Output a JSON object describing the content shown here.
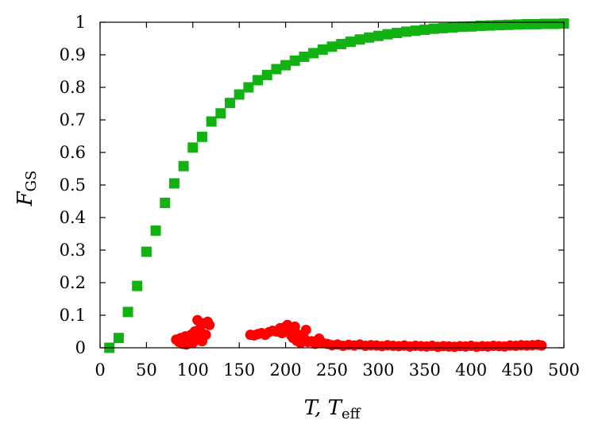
{
  "chart_data": {
    "type": "scatter",
    "xlabel_main": "T, T",
    "xlabel_sub": "eff",
    "ylabel_main": "F",
    "ylabel_sub": "GS",
    "xlim": [
      0,
      500
    ],
    "ylim": [
      0,
      1
    ],
    "x_ticks": [
      "0",
      "50",
      "100",
      "150",
      "200",
      "250",
      "300",
      "350",
      "400",
      "450",
      "500"
    ],
    "y_ticks": [
      "0",
      "0.1",
      "0.2",
      "0.3",
      "0.4",
      "0.5",
      "0.6",
      "0.7",
      "0.8",
      "0.9",
      "1"
    ],
    "grid": false,
    "legend": "none",
    "series": [
      {
        "marker": "square",
        "color": "#11b211",
        "points": [
          [
            10,
            0.0
          ],
          [
            20,
            0.03
          ],
          [
            30,
            0.11
          ],
          [
            40,
            0.19
          ],
          [
            50,
            0.295
          ],
          [
            60,
            0.36
          ],
          [
            70,
            0.445
          ],
          [
            80,
            0.505
          ],
          [
            90,
            0.558
          ],
          [
            100,
            0.615
          ],
          [
            110,
            0.648
          ],
          [
            120,
            0.695
          ],
          [
            130,
            0.72
          ],
          [
            140,
            0.752
          ],
          [
            150,
            0.778
          ],
          [
            160,
            0.8
          ],
          [
            170,
            0.822
          ],
          [
            180,
            0.838
          ],
          [
            190,
            0.856
          ],
          [
            200,
            0.868
          ],
          [
            210,
            0.882
          ],
          [
            220,
            0.894
          ],
          [
            230,
            0.905
          ],
          [
            240,
            0.916
          ],
          [
            250,
            0.925
          ],
          [
            260,
            0.933
          ],
          [
            270,
            0.94
          ],
          [
            280,
            0.947
          ],
          [
            290,
            0.953
          ],
          [
            300,
            0.958
          ],
          [
            310,
            0.963
          ],
          [
            320,
            0.967
          ],
          [
            330,
            0.971
          ],
          [
            340,
            0.974
          ],
          [
            350,
            0.977
          ],
          [
            360,
            0.98
          ],
          [
            370,
            0.982
          ],
          [
            380,
            0.984
          ],
          [
            390,
            0.986
          ],
          [
            400,
            0.987
          ],
          [
            410,
            0.989
          ],
          [
            420,
            0.99
          ],
          [
            430,
            0.991
          ],
          [
            440,
            0.992
          ],
          [
            450,
            0.993
          ],
          [
            460,
            0.994
          ],
          [
            470,
            0.994
          ],
          [
            480,
            0.995
          ],
          [
            490,
            0.995
          ],
          [
            500,
            0.996
          ]
        ]
      },
      {
        "marker": "circle",
        "color": "#ff0000",
        "points": [
          [
            82,
            0.025
          ],
          [
            85,
            0.018
          ],
          [
            87,
            0.03
          ],
          [
            89,
            0.012
          ],
          [
            90,
            0.022
          ],
          [
            92,
            0.035
          ],
          [
            93,
            0.01
          ],
          [
            95,
            0.028
          ],
          [
            96,
            0.02
          ],
          [
            98,
            0.04
          ],
          [
            100,
            0.015
          ],
          [
            102,
            0.05
          ],
          [
            103,
            0.025
          ],
          [
            105,
            0.085
          ],
          [
            107,
            0.03
          ],
          [
            108,
            0.06
          ],
          [
            110,
            0.02
          ],
          [
            112,
            0.075
          ],
          [
            114,
            0.04
          ],
          [
            116,
            0.08
          ],
          [
            118,
            0.07
          ],
          [
            162,
            0.04
          ],
          [
            166,
            0.038
          ],
          [
            170,
            0.042
          ],
          [
            174,
            0.045
          ],
          [
            178,
            0.04
          ],
          [
            182,
            0.048
          ],
          [
            186,
            0.052
          ],
          [
            190,
            0.05
          ],
          [
            194,
            0.06
          ],
          [
            196,
            0.045
          ],
          [
            198,
            0.055
          ],
          [
            200,
            0.065
          ],
          [
            202,
            0.07
          ],
          [
            204,
            0.05
          ],
          [
            206,
            0.038
          ],
          [
            208,
            0.03
          ],
          [
            210,
            0.065
          ],
          [
            212,
            0.022
          ],
          [
            214,
            0.04
          ],
          [
            216,
            0.015
          ],
          [
            218,
            0.025
          ],
          [
            220,
            0.03
          ],
          [
            222,
            0.055
          ],
          [
            224,
            0.018
          ],
          [
            228,
            0.02
          ],
          [
            232,
            0.012
          ],
          [
            236,
            0.028
          ],
          [
            240,
            0.015
          ],
          [
            245,
            0.012
          ],
          [
            250,
            0.008
          ],
          [
            256,
            0.01
          ],
          [
            262,
            0.006
          ],
          [
            268,
            0.009
          ],
          [
            274,
            0.007
          ],
          [
            280,
            0.01
          ],
          [
            286,
            0.006
          ],
          [
            292,
            0.008
          ],
          [
            298,
            0.007
          ],
          [
            304,
            0.005
          ],
          [
            310,
            0.008
          ],
          [
            316,
            0.006
          ],
          [
            322,
            0.005
          ],
          [
            328,
            0.007
          ],
          [
            334,
            0.004
          ],
          [
            340,
            0.006
          ],
          [
            346,
            0.005
          ],
          [
            352,
            0.004
          ],
          [
            358,
            0.006
          ],
          [
            364,
            0.003
          ],
          [
            370,
            0.005
          ],
          [
            376,
            0.004
          ],
          [
            382,
            0.003
          ],
          [
            388,
            0.005
          ],
          [
            394,
            0.004
          ],
          [
            400,
            0.006
          ],
          [
            406,
            0.003
          ],
          [
            412,
            0.005
          ],
          [
            418,
            0.004
          ],
          [
            424,
            0.006
          ],
          [
            430,
            0.005
          ],
          [
            436,
            0.004
          ],
          [
            442,
            0.007
          ],
          [
            448,
            0.006
          ],
          [
            454,
            0.008
          ],
          [
            460,
            0.007
          ],
          [
            466,
            0.008
          ],
          [
            472,
            0.009
          ],
          [
            476,
            0.007
          ]
        ]
      }
    ]
  }
}
